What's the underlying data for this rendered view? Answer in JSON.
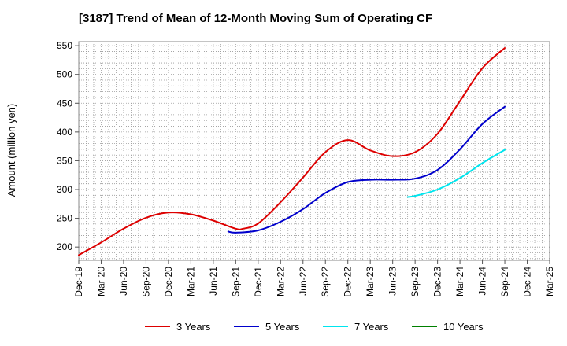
{
  "chart_data": {
    "type": "line",
    "title": "[3187]  Trend of Mean of 12-Month Moving Sum of Operating CF",
    "xlabel": "",
    "ylabel": "Amount (million yen)",
    "ylim": [
      177,
      557
    ],
    "yticks": [
      200,
      250,
      300,
      350,
      400,
      450,
      500,
      550
    ],
    "x_tick_labels": [
      "Dec-19",
      "Mar-20",
      "Jun-20",
      "Sep-20",
      "Dec-20",
      "Mar-21",
      "Jun-21",
      "Sep-21",
      "Dec-21",
      "Mar-22",
      "Jun-22",
      "Sep-22",
      "Dec-22",
      "Mar-23",
      "Jun-23",
      "Sep-23",
      "Dec-23",
      "Mar-24",
      "Jun-24",
      "Sep-24",
      "Dec-24",
      "Mar-25"
    ],
    "grid": true,
    "legend_position": "bottom",
    "series": [
      {
        "name": "3 Years",
        "color": "#dd0000",
        "x": [
          "Dec-19",
          "Mar-20",
          "Jun-20",
          "Sep-20",
          "Dec-20",
          "Mar-21",
          "Jun-21",
          "Sep-21",
          "Oct-21",
          "Dec-21",
          "Mar-22",
          "Jun-22",
          "Sep-22",
          "Dec-22",
          "Mar-23",
          "Jun-23",
          "Sep-23",
          "Dec-23",
          "Mar-24",
          "Jun-24",
          "Sep-24"
        ],
        "values": [
          186,
          208,
          232,
          251,
          260,
          257,
          246,
          232,
          232,
          241,
          278,
          321,
          365,
          386,
          368,
          358,
          365,
          397,
          454,
          511,
          546
        ]
      },
      {
        "name": "5 Years",
        "color": "#0000cc",
        "x": [
          "Aug-21",
          "Sep-21",
          "Dec-21",
          "Mar-22",
          "Jun-22",
          "Sep-22",
          "Dec-22",
          "Mar-23",
          "Jun-23",
          "Sep-23",
          "Dec-23",
          "Mar-24",
          "Jun-24",
          "Sep-24"
        ],
        "values": [
          227,
          225,
          229,
          244,
          266,
          294,
          313,
          317,
          317,
          319,
          334,
          370,
          414,
          444
        ]
      },
      {
        "name": "7 Years",
        "color": "#00e5ee",
        "x": [
          "Aug-23",
          "Sep-23",
          "Dec-23",
          "Mar-24",
          "Jun-24",
          "Sep-24"
        ],
        "values": [
          287,
          289,
          300,
          320,
          346,
          369
        ]
      },
      {
        "name": "10 Years",
        "color": "#008000",
        "x": [],
        "values": []
      }
    ]
  }
}
